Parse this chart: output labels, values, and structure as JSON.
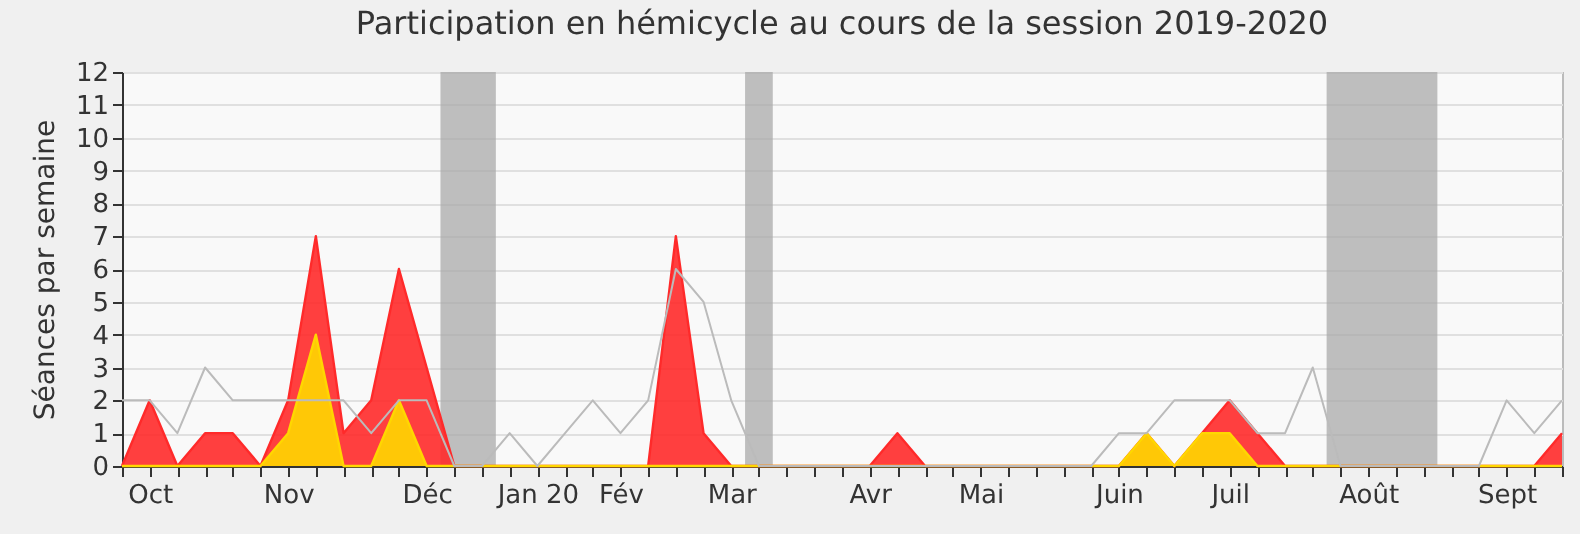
{
  "chart_data": {
    "type": "area",
    "title": "Participation en hémicycle au cours de la session 2019-2020",
    "ylabel": "Séances par semaine",
    "x": [
      "2019-09-30",
      "2019-10-07",
      "2019-10-14",
      "2019-10-21",
      "2019-10-28",
      "2019-11-04",
      "2019-11-11",
      "2019-11-18",
      "2019-11-25",
      "2019-12-02",
      "2019-12-09",
      "2019-12-16",
      "2019-12-23",
      "2019-12-30",
      "2020-01-06",
      "2020-01-13",
      "2020-01-20",
      "2020-01-27",
      "2020-02-03",
      "2020-02-10",
      "2020-02-17",
      "2020-02-24",
      "2020-03-02",
      "2020-03-09",
      "2020-03-16",
      "2020-03-23",
      "2020-03-30",
      "2020-04-06",
      "2020-04-13",
      "2020-04-20",
      "2020-04-27",
      "2020-05-04",
      "2020-05-11",
      "2020-05-18",
      "2020-05-25",
      "2020-06-01",
      "2020-06-08",
      "2020-06-15",
      "2020-06-22",
      "2020-06-29",
      "2020-07-06",
      "2020-07-13",
      "2020-07-20",
      "2020-07-27",
      "2020-08-03",
      "2020-08-10",
      "2020-08-17",
      "2020-08-24",
      "2020-08-31",
      "2020-09-07",
      "2020-09-14",
      "2020-09-21",
      "2020-09-28"
    ],
    "series": [
      {
        "color": "#ff2a2a",
        "values": [
          0,
          2,
          0,
          1,
          1,
          0,
          2,
          7,
          1,
          2,
          6,
          3,
          0,
          0,
          0,
          0,
          0,
          0,
          0,
          0,
          7,
          1,
          0,
          0,
          0,
          0,
          0,
          0,
          1,
          0,
          0,
          0,
          0,
          0,
          0,
          0,
          0,
          1,
          0,
          1,
          2,
          1,
          0,
          0,
          0,
          0,
          0,
          0,
          0,
          0,
          0,
          0,
          1
        ]
      },
      {
        "color": "#ffd700",
        "values": [
          0,
          0,
          0,
          0,
          0,
          0,
          1,
          4,
          0,
          0,
          2,
          0,
          0,
          0,
          0,
          0,
          0,
          0,
          0,
          0,
          0,
          0,
          0,
          0,
          0,
          0,
          0,
          0,
          0,
          0,
          0,
          0,
          0,
          0,
          0,
          0,
          0,
          1,
          0,
          1,
          1,
          0,
          0,
          0,
          0,
          0,
          0,
          0,
          0,
          0,
          0,
          0,
          0
        ]
      },
      {
        "type": "line",
        "color": "#bbbbbb",
        "values": [
          2,
          2,
          1,
          3,
          2,
          2,
          2,
          2,
          2,
          1,
          2,
          2,
          0,
          0,
          1,
          0,
          1,
          2,
          1,
          2,
          6,
          5,
          2,
          0,
          0,
          0,
          0,
          0,
          0,
          0,
          0,
          0,
          0,
          0,
          0,
          0,
          1,
          1,
          2,
          2,
          2,
          1,
          1,
          3,
          0,
          0,
          0,
          0,
          0,
          0,
          2,
          1,
          2
        ]
      }
    ],
    "xlim": [
      "2019-09-30",
      "2020-09-28"
    ],
    "xticks": [
      {
        "value": "2019-09-30",
        "label": null
      },
      {
        "value": "2019-10-07",
        "label": "Oct"
      },
      {
        "value": "2019-10-14",
        "label": null
      },
      {
        "value": "2019-10-21",
        "label": null
      },
      {
        "value": "2019-10-28",
        "label": null
      },
      {
        "value": "2019-11-04",
        "label": null
      },
      {
        "value": "2019-11-11",
        "label": "Nov"
      },
      {
        "value": "2019-11-18",
        "label": null
      },
      {
        "value": "2019-11-25",
        "label": null
      },
      {
        "value": "2019-12-02",
        "label": null
      },
      {
        "value": "2019-12-09",
        "label": null
      },
      {
        "value": "2019-12-16",
        "label": "Déc"
      },
      {
        "value": "2019-12-23",
        "label": null
      },
      {
        "value": "2019-12-30",
        "label": null
      },
      {
        "value": "2020-01-06",
        "label": null
      },
      {
        "value": "2020-01-13",
        "label": "Jan 20"
      },
      {
        "value": "2020-01-20",
        "label": null
      },
      {
        "value": "2020-01-27",
        "label": null
      },
      {
        "value": "2020-02-03",
        "label": "Fév"
      },
      {
        "value": "2020-02-10",
        "label": null
      },
      {
        "value": "2020-02-17",
        "label": null
      },
      {
        "value": "2020-02-24",
        "label": null
      },
      {
        "value": "2020-03-02",
        "label": "Mar"
      },
      {
        "value": "2020-03-09",
        "label": null
      },
      {
        "value": "2020-03-16",
        "label": null
      },
      {
        "value": "2020-03-23",
        "label": null
      },
      {
        "value": "2020-03-30",
        "label": null
      },
      {
        "value": "2020-04-06",
        "label": "Avr"
      },
      {
        "value": "2020-04-13",
        "label": null
      },
      {
        "value": "2020-04-20",
        "label": null
      },
      {
        "value": "2020-04-27",
        "label": null
      },
      {
        "value": "2020-05-04",
        "label": "Mai"
      },
      {
        "value": "2020-05-11",
        "label": null
      },
      {
        "value": "2020-05-18",
        "label": null
      },
      {
        "value": "2020-05-25",
        "label": null
      },
      {
        "value": "2020-06-01",
        "label": null
      },
      {
        "value": "2020-06-08",
        "label": "Juin"
      },
      {
        "value": "2020-06-15",
        "label": null
      },
      {
        "value": "2020-06-22",
        "label": null
      },
      {
        "value": "2020-06-29",
        "label": null
      },
      {
        "value": "2020-07-06",
        "label": "Juil"
      },
      {
        "value": "2020-07-13",
        "label": null
      },
      {
        "value": "2020-07-20",
        "label": null
      },
      {
        "value": "2020-07-27",
        "label": null
      },
      {
        "value": "2020-08-03",
        "label": null
      },
      {
        "value": "2020-08-10",
        "label": "Août"
      },
      {
        "value": "2020-08-17",
        "label": null
      },
      {
        "value": "2020-08-24",
        "label": null
      },
      {
        "value": "2020-08-31",
        "label": null
      },
      {
        "value": "2020-09-07",
        "label": null
      },
      {
        "value": "2020-09-14",
        "label": "Sept"
      },
      {
        "value": "2020-09-21",
        "label": null
      },
      {
        "value": "2020-09-28",
        "label": null
      }
    ],
    "ylim": [
      0,
      12
    ],
    "yticks": [
      0,
      1,
      2,
      3,
      4,
      5,
      6,
      7,
      8,
      9,
      10,
      11,
      12
    ],
    "grid": "y",
    "bands": [
      {
        "axis": "x",
        "from": "2019-12-19T12:00",
        "to": "2020-01-02T12:00",
        "color": "#aaaaaa"
      },
      {
        "axis": "x",
        "from": "2020-03-05T12:00",
        "to": "2020-03-12T12:00",
        "color": "#aaaaaa"
      },
      {
        "axis": "x",
        "from": "2020-07-30T12:00",
        "to": "2020-08-27T12:00",
        "color": "#aaaaaa"
      }
    ]
  }
}
